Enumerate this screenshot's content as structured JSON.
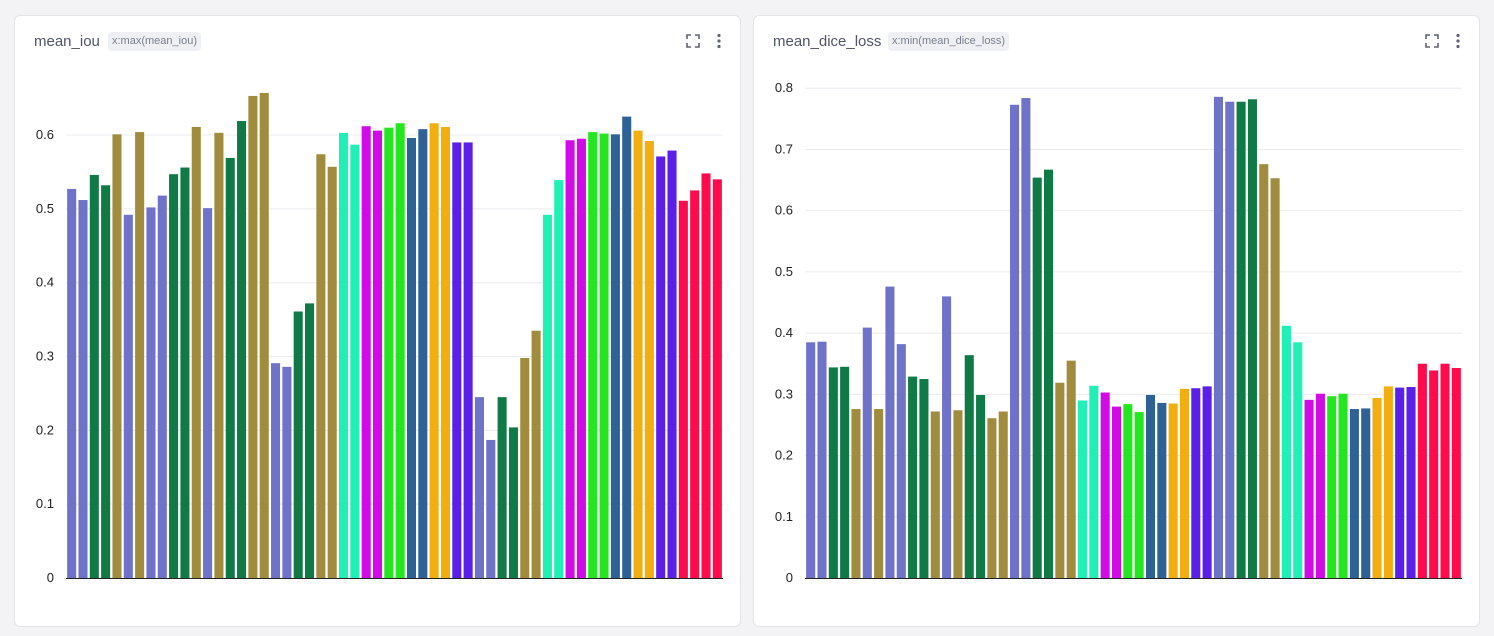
{
  "panels": [
    {
      "title": "mean_iou",
      "badge": "x:max(mean_iou)"
    },
    {
      "title": "mean_dice_loss",
      "badge": "x:min(mean_dice_loss)"
    }
  ],
  "icons": {
    "expand": "expand-icon",
    "more": "more-vertical-icon"
  },
  "chart_data": [
    {
      "type": "bar",
      "title": "mean_iou",
      "ylim": [
        0,
        0.68
      ],
      "yticks": [
        0,
        0.1,
        0.2,
        0.3,
        0.4,
        0.5,
        0.6
      ],
      "ytick_labels": [
        "0",
        "0.1",
        "0.2",
        "0.3",
        "0.4",
        "0.5",
        "0.6"
      ],
      "grid": true,
      "legend": false,
      "values": [
        0.527,
        0.512,
        0.546,
        0.532,
        0.601,
        0.492,
        0.604,
        0.502,
        0.518,
        0.547,
        0.556,
        0.611,
        0.501,
        0.603,
        0.569,
        0.619,
        0.653,
        0.657,
        0.291,
        0.286,
        0.361,
        0.372,
        0.574,
        0.557,
        0.603,
        0.587,
        0.612,
        0.606,
        0.61,
        0.616,
        0.596,
        0.608,
        0.616,
        0.611,
        0.59,
        0.59,
        0.245,
        0.187,
        0.245,
        0.204,
        0.298,
        0.335,
        0.492,
        0.539,
        0.593,
        0.595,
        0.604,
        0.602,
        0.601,
        0.625,
        0.606,
        0.592,
        0.571,
        0.579,
        0.511,
        0.525,
        0.548,
        0.54
      ],
      "colors": [
        "#6e72c8",
        "#6e72c8",
        "#0f7a45",
        "#0f7a45",
        "#a08c3c",
        "#6e72c8",
        "#a08c3c",
        "#6e72c8",
        "#6e72c8",
        "#0f7a45",
        "#0f7a45",
        "#a08c3c",
        "#6e72c8",
        "#a08c3c",
        "#0f7a45",
        "#0f7a45",
        "#a08c3c",
        "#a08c3c",
        "#6e72c8",
        "#6e72c8",
        "#0f7a45",
        "#0f7a45",
        "#a08c3c",
        "#a08c3c",
        "#21f0b6",
        "#21f0b6",
        "#d00be6",
        "#d00be6",
        "#24e61f",
        "#24e61f",
        "#2e6196",
        "#2e6196",
        "#f2ae0f",
        "#f2ae0f",
        "#5a1fe8",
        "#5a1fe8",
        "#6e72c8",
        "#6e72c8",
        "#0f7a45",
        "#0f7a45",
        "#a08c3c",
        "#a08c3c",
        "#21f0b6",
        "#21f0b6",
        "#d00be6",
        "#d00be6",
        "#24e61f",
        "#24e61f",
        "#2e6196",
        "#2e6196",
        "#f2ae0f",
        "#f2ae0f",
        "#5a1fe8",
        "#5a1fe8",
        "#ff0a4a",
        "#ff0a4a",
        "#ff0a4a",
        "#ff0a4a"
      ]
    },
    {
      "type": "bar",
      "title": "mean_dice_loss",
      "ylim": [
        0,
        0.82
      ],
      "yticks": [
        0,
        0.1,
        0.2,
        0.3,
        0.4,
        0.5,
        0.6,
        0.7,
        0.8
      ],
      "ytick_labels": [
        "0",
        "0.1",
        "0.2",
        "0.3",
        "0.4",
        "0.5",
        "0.6",
        "0.7",
        "0.8"
      ],
      "grid": true,
      "legend": false,
      "values": [
        0.385,
        0.386,
        0.344,
        0.345,
        0.276,
        0.409,
        0.276,
        0.476,
        0.382,
        0.329,
        0.325,
        0.272,
        0.46,
        0.274,
        0.364,
        0.299,
        0.261,
        0.272,
        0.773,
        0.784,
        0.654,
        0.667,
        0.319,
        0.355,
        0.29,
        0.314,
        0.303,
        0.28,
        0.284,
        0.271,
        0.299,
        0.286,
        0.285,
        0.309,
        0.31,
        0.313,
        0.786,
        0.778,
        0.778,
        0.782,
        0.676,
        0.653,
        0.412,
        0.385,
        0.291,
        0.301,
        0.297,
        0.301,
        0.276,
        0.277,
        0.294,
        0.313,
        0.311,
        0.312,
        0.35,
        0.339,
        0.35,
        0.343
      ],
      "colors": [
        "#6e72c8",
        "#6e72c8",
        "#0f7a45",
        "#0f7a45",
        "#a08c3c",
        "#6e72c8",
        "#a08c3c",
        "#6e72c8",
        "#6e72c8",
        "#0f7a45",
        "#0f7a45",
        "#a08c3c",
        "#6e72c8",
        "#a08c3c",
        "#0f7a45",
        "#0f7a45",
        "#a08c3c",
        "#a08c3c",
        "#6e72c8",
        "#6e72c8",
        "#0f7a45",
        "#0f7a45",
        "#a08c3c",
        "#a08c3c",
        "#21f0b6",
        "#21f0b6",
        "#d00be6",
        "#d00be6",
        "#24e61f",
        "#24e61f",
        "#2e6196",
        "#2e6196",
        "#f2ae0f",
        "#f2ae0f",
        "#5a1fe8",
        "#5a1fe8",
        "#6e72c8",
        "#6e72c8",
        "#0f7a45",
        "#0f7a45",
        "#a08c3c",
        "#a08c3c",
        "#21f0b6",
        "#21f0b6",
        "#d00be6",
        "#d00be6",
        "#24e61f",
        "#24e61f",
        "#2e6196",
        "#2e6196",
        "#f2ae0f",
        "#f2ae0f",
        "#5a1fe8",
        "#5a1fe8",
        "#ff0a4a",
        "#ff0a4a",
        "#ff0a4a",
        "#ff0a4a"
      ]
    }
  ]
}
